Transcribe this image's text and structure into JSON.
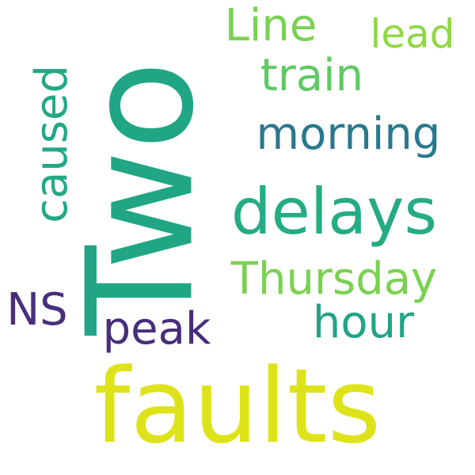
{
  "words": {
    "two": {
      "text": "Two",
      "color": "#21a685"
    },
    "faults": {
      "text": "faults",
      "color": "#dde318"
    },
    "delays": {
      "text": "delays",
      "color": "#25ac82"
    },
    "thursday": {
      "text": "Thursday",
      "color": "#7ad151"
    },
    "morning": {
      "text": "morning",
      "color": "#2a788e"
    },
    "train": {
      "text": "train",
      "color": "#5ec962"
    },
    "line": {
      "text": "Line",
      "color": "#7ad151"
    },
    "lead": {
      "text": "lead",
      "color": "#8fd744"
    },
    "caused": {
      "text": "caused",
      "color": "#22a884"
    },
    "hour": {
      "text": "hour",
      "color": "#20a486"
    },
    "peak": {
      "text": "peak",
      "color": "#472d7b"
    },
    "ns": {
      "text": "NS",
      "color": "#472f7d"
    }
  }
}
